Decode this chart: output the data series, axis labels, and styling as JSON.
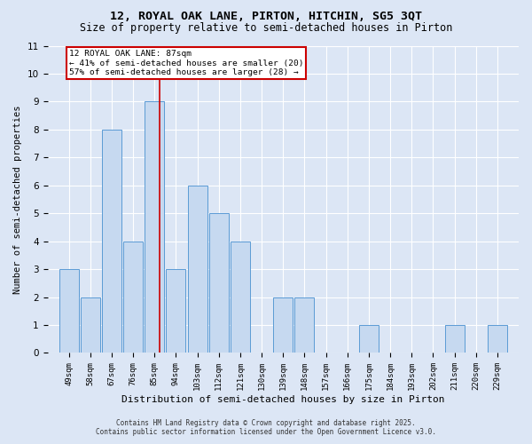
{
  "title1": "12, ROYAL OAK LANE, PIRTON, HITCHIN, SG5 3QT",
  "title2": "Size of property relative to semi-detached houses in Pirton",
  "xlabel": "Distribution of semi-detached houses by size in Pirton",
  "ylabel": "Number of semi-detached properties",
  "bins": [
    49,
    58,
    67,
    76,
    85,
    94,
    103,
    112,
    121,
    130,
    139,
    148,
    157,
    166,
    175,
    184,
    193,
    202,
    211,
    220,
    229
  ],
  "heights": [
    3,
    2,
    8,
    4,
    9,
    3,
    6,
    5,
    4,
    0,
    2,
    2,
    0,
    0,
    1,
    0,
    0,
    0,
    1,
    0,
    1
  ],
  "bar_color": "#c6d9f0",
  "bar_edge_color": "#5b9bd5",
  "red_line_x": 87,
  "annotation_title": "12 ROYAL OAK LANE: 87sqm",
  "annotation_line1": "← 41% of semi-detached houses are smaller (20)",
  "annotation_line2": "57% of semi-detached houses are larger (28) →",
  "annotation_box_color": "#cc0000",
  "ylim": [
    0,
    11
  ],
  "footer1": "Contains HM Land Registry data © Crown copyright and database right 2025.",
  "footer2": "Contains public sector information licensed under the Open Government Licence v3.0.",
  "bg_color": "#dce6f5",
  "plot_bg_color": "#dce6f5",
  "title1_fontsize": 9.5,
  "title2_fontsize": 8.5,
  "xlabel_fontsize": 8,
  "ylabel_fontsize": 7.5,
  "tick_fontsize": 6.5,
  "ytick_fontsize": 7.5,
  "footer_fontsize": 5.5,
  "ann_fontsize": 6.8
}
